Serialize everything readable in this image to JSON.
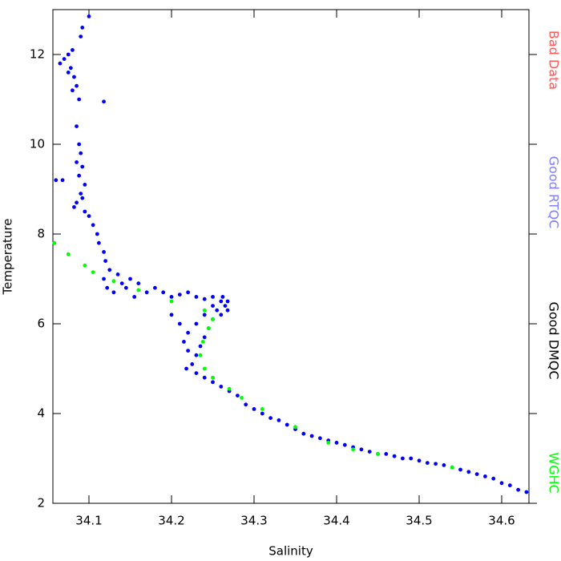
{
  "chart_data": {
    "type": "scatter",
    "x_label": "Salinity",
    "y_label": "Temperature",
    "xlim": [
      34.0563,
      34.633
    ],
    "ylim": [
      2,
      13
    ],
    "xticks": [
      34.1,
      34.2,
      34.3,
      34.4,
      34.5,
      34.6
    ],
    "yticks": [
      2,
      4,
      6,
      8,
      10,
      12
    ],
    "series": [
      {
        "name": "Bad Data",
        "color": "#ff5a5a",
        "x": [],
        "y": []
      },
      {
        "name": "Good RTQC",
        "color": "#0000ff",
        "x": [
          34.065,
          34.07,
          34.075,
          34.08,
          34.078,
          34.082,
          34.085,
          34.088,
          34.09,
          34.092,
          34.1,
          34.075,
          34.08,
          34.118,
          34.085,
          34.088,
          34.09,
          34.085,
          34.092,
          34.088,
          34.095,
          34.06,
          34.068,
          34.09,
          34.085,
          34.082,
          34.092,
          34.095,
          34.1,
          34.105,
          34.11,
          34.112,
          34.118,
          34.12,
          34.125,
          34.118,
          34.122,
          34.13,
          34.14,
          34.135,
          34.145,
          34.15,
          34.16,
          34.155,
          34.17,
          34.18,
          34.19,
          34.2,
          34.21,
          34.22,
          34.23,
          34.24,
          34.25,
          34.26,
          34.265,
          34.268,
          34.262,
          34.255,
          34.25,
          34.245,
          34.24,
          34.235,
          34.23,
          34.225,
          34.22,
          34.215,
          34.218,
          34.23,
          34.24,
          34.25,
          34.26,
          34.27,
          34.28,
          34.29,
          34.3,
          34.31,
          34.32,
          34.33,
          34.34,
          34.35,
          34.36,
          34.37,
          34.38,
          34.39,
          34.4,
          34.41,
          34.42,
          34.43,
          34.44,
          34.45,
          34.46,
          34.47,
          34.48,
          34.49,
          34.5,
          34.51,
          34.52,
          34.53,
          34.54,
          34.55,
          34.56,
          34.57,
          34.58,
          34.59,
          34.6,
          34.61,
          34.62,
          34.63,
          34.2,
          34.21,
          34.25,
          34.24,
          34.23,
          34.22,
          34.26,
          34.268
        ],
        "y": [
          11.8,
          11.9,
          12.0,
          12.1,
          11.7,
          11.5,
          11.3,
          11.0,
          12.4,
          12.6,
          12.85,
          11.6,
          11.2,
          10.95,
          10.4,
          10.0,
          9.8,
          9.6,
          9.5,
          9.3,
          9.1,
          9.2,
          9.2,
          8.9,
          8.7,
          8.6,
          8.8,
          8.5,
          8.4,
          8.2,
          8.0,
          7.8,
          7.6,
          7.4,
          7.2,
          7.0,
          6.8,
          6.7,
          6.9,
          7.1,
          6.8,
          7.0,
          6.9,
          6.6,
          6.7,
          6.8,
          6.7,
          6.6,
          6.65,
          6.7,
          6.6,
          6.55,
          6.6,
          6.5,
          6.4,
          6.3,
          6.6,
          6.3,
          6.1,
          5.9,
          5.7,
          5.5,
          5.3,
          5.1,
          5.4,
          5.6,
          5.0,
          4.9,
          4.8,
          4.7,
          4.6,
          4.5,
          4.4,
          4.2,
          4.1,
          4.0,
          3.9,
          3.85,
          3.75,
          3.65,
          3.55,
          3.5,
          3.45,
          3.4,
          3.35,
          3.3,
          3.25,
          3.2,
          3.15,
          3.1,
          3.1,
          3.05,
          3.0,
          3.0,
          2.95,
          2.9,
          2.88,
          2.85,
          2.8,
          2.75,
          2.7,
          2.65,
          2.6,
          2.55,
          2.45,
          2.4,
          2.3,
          2.25,
          6.2,
          6.0,
          6.4,
          6.2,
          6.0,
          5.8,
          6.2,
          6.5
        ]
      },
      {
        "name": "Good DMQC",
        "color": "#000000",
        "x": [],
        "y": []
      },
      {
        "name": "WGHC",
        "color": "#00ff00",
        "x": [
          34.058,
          34.075,
          34.095,
          34.105,
          34.13,
          34.16,
          34.2,
          34.24,
          34.25,
          34.245,
          34.238,
          34.235,
          34.24,
          34.25,
          34.27,
          34.285,
          34.31,
          34.35,
          34.39,
          34.42,
          34.45,
          34.54
        ],
        "y": [
          7.8,
          7.55,
          7.3,
          7.15,
          6.95,
          6.75,
          6.5,
          6.3,
          6.1,
          5.9,
          5.6,
          5.3,
          5.0,
          4.8,
          4.55,
          4.35,
          4.1,
          3.7,
          3.35,
          3.2,
          3.1,
          2.8
        ]
      }
    ]
  }
}
